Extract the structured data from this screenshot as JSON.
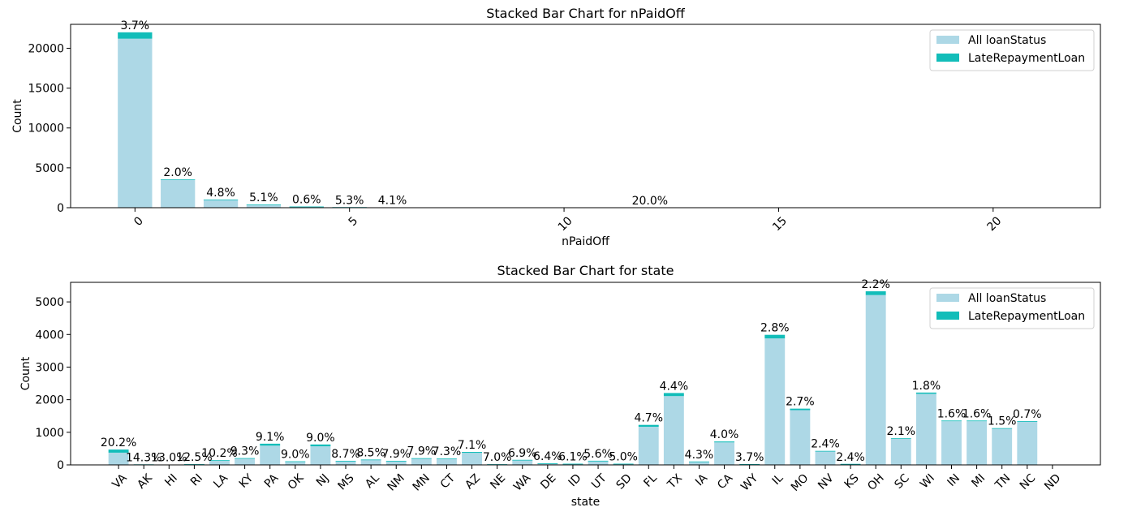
{
  "chart_data": [
    {
      "type": "bar",
      "stacked": true,
      "title": "Stacked Bar Chart for nPaidOff",
      "xlabel": "nPaidOff",
      "ylabel": "Count",
      "xlim": [
        -1.5,
        22.5
      ],
      "ylim": [
        0,
        23000
      ],
      "xticks": [
        0,
        5,
        10,
        15,
        20
      ],
      "yticks": [
        0,
        5000,
        10000,
        15000,
        20000
      ],
      "x": [
        0,
        1,
        2,
        3,
        4,
        5,
        6,
        7,
        8,
        9,
        10,
        11,
        12,
        13,
        14,
        15,
        16,
        17,
        18,
        19,
        20,
        21
      ],
      "series": [
        {
          "name": "All loanStatus",
          "values": [
            21200,
            3500,
            980,
            380,
            150,
            70,
            40,
            20,
            10,
            5,
            3,
            2,
            1,
            1,
            1,
            1,
            1,
            1,
            1,
            1,
            1,
            1
          ]
        },
        {
          "name": "LateRepaymentLoan",
          "values": [
            800,
            70,
            50,
            20,
            1,
            4,
            2,
            0,
            0,
            0,
            0,
            0,
            0,
            0,
            0,
            0,
            0,
            0,
            0,
            0,
            0,
            0
          ]
        }
      ],
      "data_labels": [
        {
          "x": 0,
          "text": "3.7%"
        },
        {
          "x": 1,
          "text": "2.0%"
        },
        {
          "x": 2,
          "text": "4.8%"
        },
        {
          "x": 3,
          "text": "5.1%"
        },
        {
          "x": 4,
          "text": "0.6%"
        },
        {
          "x": 5,
          "text": "5.3%"
        },
        {
          "x": 6,
          "text": "4.1%"
        },
        {
          "x": 12,
          "text": "20.0%"
        }
      ],
      "legend": "top-right",
      "grid": false,
      "colors": {
        "all": "#add8e6",
        "late": "#12bdb9"
      }
    },
    {
      "type": "bar",
      "stacked": true,
      "title": "Stacked Bar Chart for state",
      "xlabel": "state",
      "ylabel": "Count",
      "ylim": [
        0,
        5600
      ],
      "yticks": [
        0,
        1000,
        2000,
        3000,
        4000,
        5000
      ],
      "categories": [
        "VA",
        "AK",
        "HI",
        "RI",
        "LA",
        "KY",
        "PA",
        "OK",
        "NJ",
        "MS",
        "AL",
        "NM",
        "MN",
        "CT",
        "AZ",
        "NE",
        "WA",
        "DE",
        "ID",
        "UT",
        "SD",
        "FL",
        "TX",
        "IA",
        "CA",
        "WY",
        "IL",
        "MO",
        "NV",
        "KS",
        "OH",
        "SC",
        "WI",
        "IN",
        "MI",
        "TN",
        "NC",
        "ND"
      ],
      "series": [
        {
          "name": "All loanStatus",
          "values": [
            375,
            15,
            10,
            20,
            130,
            190,
            590,
            100,
            570,
            115,
            150,
            115,
            190,
            180,
            370,
            20,
            145,
            45,
            35,
            120,
            35,
            1170,
            2110,
            100,
            690,
            25,
            3880,
            1680,
            420,
            30,
            5210,
            800,
            2180,
            1340,
            1340,
            1110,
            1335,
            10
          ]
        },
        {
          "name": "LateRepaymentLoan",
          "values": [
            95,
            2,
            1,
            3,
            15,
            18,
            60,
            10,
            56,
            10,
            14,
            10,
            16,
            14,
            28,
            1,
            10,
            3,
            2,
            7,
            2,
            57,
            95,
            4,
            28,
            1,
            110,
            46,
            10,
            1,
            115,
            17,
            39,
            21,
            21,
            17,
            9,
            0
          ]
        }
      ],
      "data_labels": [
        "20.2%",
        "14.3%",
        "13.0%",
        "12.5%",
        "10.2%",
        "9.3%",
        "9.1%",
        "9.0%",
        "9.0%",
        "8.7%",
        "8.5%",
        "7.9%",
        "7.9%",
        "7.3%",
        "7.1%",
        "7.0%",
        "6.9%",
        "6.4%",
        "6.1%",
        "5.6%",
        "5.0%",
        "4.7%",
        "4.4%",
        "4.3%",
        "4.0%",
        "3.7%",
        "2.8%",
        "2.7%",
        "2.4%",
        "2.4%",
        "2.2%",
        "2.1%",
        "1.8%",
        "1.6%",
        "1.6%",
        "1.5%",
        "0.7%",
        ""
      ],
      "legend": "top-right",
      "grid": false,
      "colors": {
        "all": "#add8e6",
        "late": "#12bdb9"
      }
    }
  ]
}
